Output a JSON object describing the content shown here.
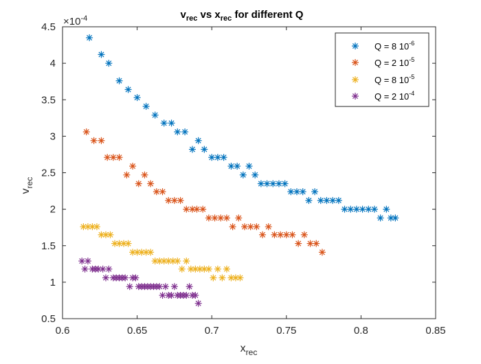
{
  "chart_data": {
    "type": "scatter",
    "title": "v_rec vs x_rec for different Q",
    "title_parts": {
      "v": "v",
      "v_sub": "rec",
      "mid": " vs x",
      "x_sub": "rec",
      "end": " for different Q"
    },
    "xlabel": {
      "main": "x",
      "sub": "rec"
    },
    "ylabel": {
      "main": "v",
      "sub": "rec"
    },
    "y_exponent": {
      "prefix": "×10",
      "power": "-4"
    },
    "xlim": [
      0.6,
      0.85
    ],
    "ylim": [
      0.5,
      4.5
    ],
    "x_ticks": [
      0.6,
      0.65,
      0.7,
      0.75,
      0.8,
      0.85
    ],
    "x_tick_labels": [
      "0.6",
      "0.65",
      "0.7",
      "0.75",
      "0.8",
      "0.85"
    ],
    "y_ticks": [
      0.5,
      1,
      1.5,
      2,
      2.5,
      3,
      3.5,
      4,
      4.5
    ],
    "y_tick_labels": [
      "0.5",
      "1",
      "1.5",
      "2",
      "2.5",
      "3",
      "3.5",
      "4",
      "4.5"
    ],
    "grid": false,
    "legend_position": "top-right",
    "marker": "asterisk",
    "series": [
      {
        "name": "Q = 8 10^-6",
        "label_main": "Q = 8 10",
        "label_exp": "-6",
        "color": "#0072BD",
        "x": [
          0.618,
          0.626,
          0.631,
          0.638,
          0.644,
          0.65,
          0.656,
          0.662,
          0.668,
          0.673,
          0.677,
          0.682,
          0.687,
          0.691,
          0.695,
          0.7,
          0.704,
          0.708,
          0.713,
          0.717,
          0.721,
          0.725,
          0.729,
          0.733,
          0.737,
          0.741,
          0.745,
          0.749,
          0.753,
          0.757,
          0.761,
          0.765,
          0.769,
          0.773,
          0.777,
          0.781,
          0.785,
          0.789,
          0.793,
          0.797,
          0.801,
          0.805,
          0.809,
          0.813,
          0.817,
          0.82,
          0.823
        ],
        "y": [
          4.35,
          4.12,
          4.0,
          3.76,
          3.64,
          3.53,
          3.41,
          3.29,
          3.18,
          3.18,
          3.06,
          3.06,
          2.82,
          2.94,
          2.82,
          2.71,
          2.71,
          2.71,
          2.59,
          2.59,
          2.47,
          2.59,
          2.47,
          2.35,
          2.35,
          2.35,
          2.35,
          2.35,
          2.24,
          2.24,
          2.24,
          2.12,
          2.24,
          2.12,
          2.12,
          2.12,
          2.12,
          2.0,
          2.0,
          2.0,
          2.0,
          2.0,
          2.0,
          1.88,
          2.0,
          1.88,
          1.88
        ]
      },
      {
        "name": "Q = 2 10^-5",
        "label_main": "Q = 2 10",
        "label_exp": "-5",
        "color": "#D95319",
        "x": [
          0.616,
          0.621,
          0.626,
          0.63,
          0.634,
          0.638,
          0.643,
          0.647,
          0.651,
          0.655,
          0.659,
          0.663,
          0.667,
          0.671,
          0.675,
          0.679,
          0.683,
          0.687,
          0.69,
          0.694,
          0.698,
          0.702,
          0.706,
          0.71,
          0.714,
          0.718,
          0.722,
          0.726,
          0.73,
          0.734,
          0.738,
          0.742,
          0.746,
          0.75,
          0.754,
          0.758,
          0.762,
          0.766,
          0.77,
          0.774
        ],
        "y": [
          3.06,
          2.94,
          2.94,
          2.71,
          2.71,
          2.71,
          2.47,
          2.59,
          2.35,
          2.47,
          2.35,
          2.24,
          2.24,
          2.12,
          2.12,
          2.12,
          2.0,
          2.0,
          2.0,
          2.0,
          1.88,
          1.88,
          1.88,
          1.88,
          1.76,
          1.88,
          1.76,
          1.76,
          1.76,
          1.65,
          1.76,
          1.65,
          1.65,
          1.65,
          1.65,
          1.53,
          1.65,
          1.53,
          1.53,
          1.41
        ]
      },
      {
        "name": "Q = 8 10^-5",
        "label_main": "Q = 8 10",
        "label_exp": "-5",
        "color": "#EDB120",
        "x": [
          0.614,
          0.617,
          0.62,
          0.623,
          0.626,
          0.629,
          0.632,
          0.635,
          0.638,
          0.641,
          0.644,
          0.647,
          0.65,
          0.653,
          0.656,
          0.659,
          0.662,
          0.665,
          0.668,
          0.671,
          0.674,
          0.677,
          0.68,
          0.683,
          0.686,
          0.689,
          0.692,
          0.695,
          0.698,
          0.701,
          0.704,
          0.707,
          0.71,
          0.713,
          0.716,
          0.719
        ],
        "y": [
          1.76,
          1.76,
          1.76,
          1.76,
          1.65,
          1.65,
          1.65,
          1.53,
          1.53,
          1.53,
          1.53,
          1.41,
          1.41,
          1.41,
          1.41,
          1.41,
          1.29,
          1.29,
          1.29,
          1.29,
          1.29,
          1.29,
          1.18,
          1.29,
          1.18,
          1.18,
          1.18,
          1.18,
          1.18,
          1.06,
          1.18,
          1.06,
          1.18,
          1.06,
          1.06,
          1.06
        ]
      },
      {
        "name": "Q = 2 10^-4",
        "label_main": "Q = 2 10",
        "label_exp": "-4",
        "color": "#7E2F8E",
        "x": [
          0.613,
          0.615,
          0.617,
          0.62,
          0.622,
          0.624,
          0.627,
          0.629,
          0.631,
          0.634,
          0.636,
          0.638,
          0.64,
          0.642,
          0.645,
          0.647,
          0.649,
          0.651,
          0.653,
          0.655,
          0.657,
          0.659,
          0.661,
          0.663,
          0.665,
          0.667,
          0.669,
          0.671,
          0.673,
          0.675,
          0.677,
          0.679,
          0.681,
          0.683,
          0.685,
          0.687,
          0.689,
          0.691
        ],
        "y": [
          1.29,
          1.18,
          1.29,
          1.18,
          1.18,
          1.18,
          1.18,
          1.06,
          1.18,
          1.06,
          1.06,
          1.06,
          1.06,
          1.06,
          0.94,
          1.06,
          1.06,
          0.94,
          0.94,
          0.94,
          0.94,
          0.94,
          0.94,
          0.94,
          0.94,
          0.82,
          0.94,
          0.82,
          0.82,
          0.94,
          0.82,
          0.82,
          0.82,
          0.82,
          0.94,
          0.82,
          0.82,
          0.71
        ]
      }
    ]
  }
}
